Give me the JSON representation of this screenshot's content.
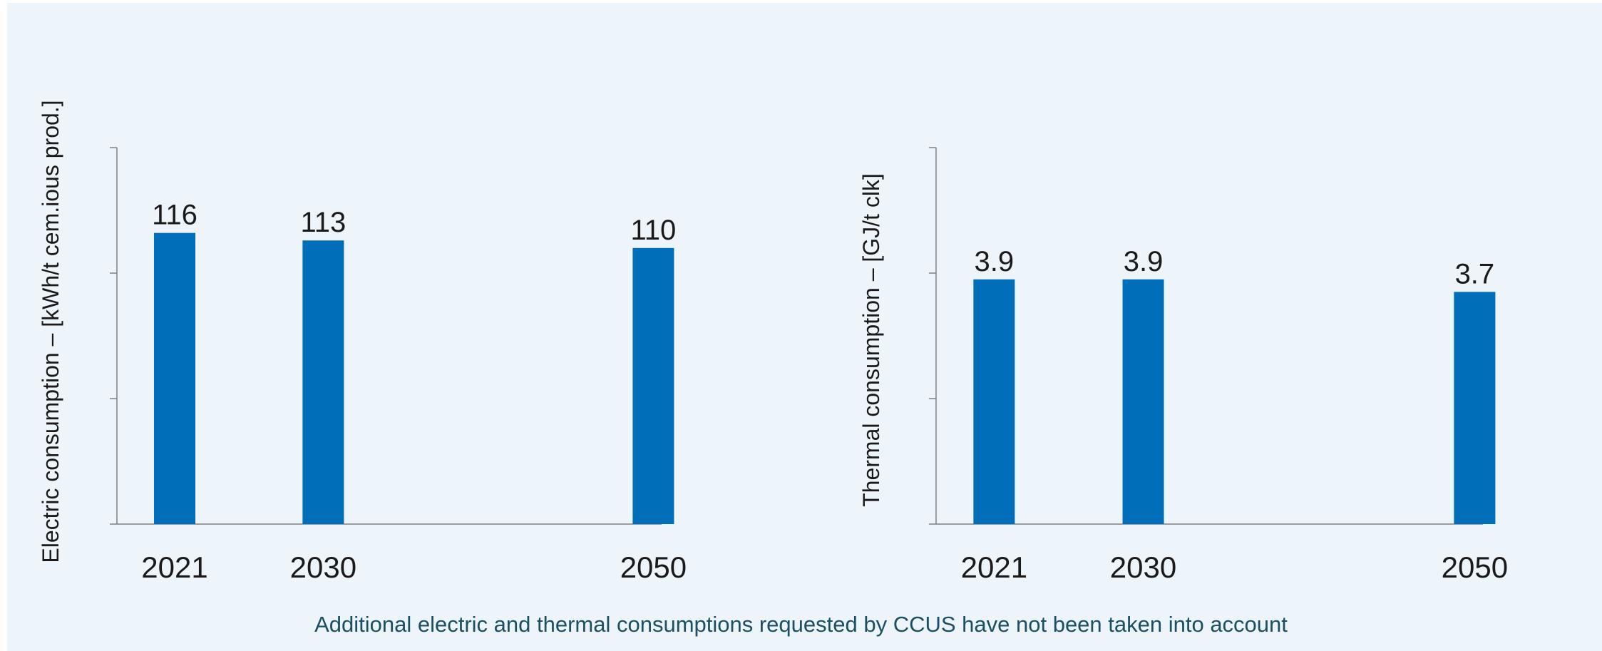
{
  "chart_data": [
    {
      "type": "bar",
      "categories": [
        "2021",
        "2030",
        "2050"
      ],
      "x": [
        2021,
        2030,
        2050
      ],
      "values": [
        116,
        113,
        110
      ],
      "data_labels": [
        "116",
        "113",
        "110"
      ],
      "ylabel": "Electric consumption – [kWh/t cem.ious prod.]",
      "ylim": [
        0,
        150
      ],
      "yticks": [
        0,
        50,
        100,
        150
      ],
      "xlim": [
        2017.5,
        2050.5
      ],
      "grid": false,
      "bar_color": "#006eb8"
    },
    {
      "type": "bar",
      "categories": [
        "2021",
        "2030",
        "2050"
      ],
      "x": [
        2021,
        2030,
        2050
      ],
      "values": [
        3.9,
        3.9,
        3.7
      ],
      "data_labels": [
        "3.9",
        "3.9",
        "3.7"
      ],
      "ylabel": "Thermal consumption –  [GJ/t clk]",
      "ylim": [
        0,
        6
      ],
      "yticks": [
        0,
        2,
        4,
        6
      ],
      "xlim": [
        2017.5,
        2050.5
      ],
      "grid": false,
      "bar_color": "#006eb8"
    }
  ],
  "footnote": "Additional electric and thermal consumptions requested by CCUS have not been taken into account"
}
